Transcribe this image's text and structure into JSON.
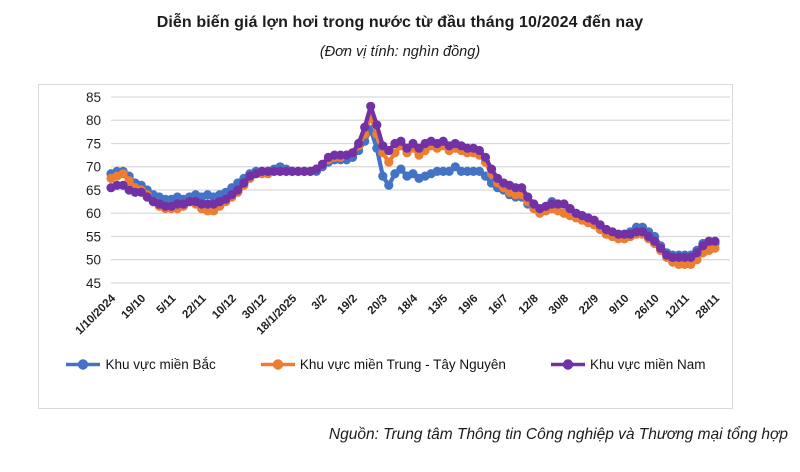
{
  "header": {
    "title": "Diễn biến giá lợn hơi trong nước từ đầu tháng 10/2024 đến nay",
    "subtitle": "(Đơn vị tính: nghìn đồng)"
  },
  "footer": {
    "source": "Nguồn: Trung tâm Thông tin Công nghiệp và Thương mại tổng hợp"
  },
  "colors": {
    "mien_bac": "#4472C4",
    "mien_trung_tay_nguyen": "#ED7D31",
    "mien_nam": "#7231A5",
    "gridline": "#D9D9D9",
    "plot_border": "#D9D9D9",
    "axis_text": "#1f1f1f"
  },
  "chart_data": {
    "type": "line",
    "title": "Diễn biến giá lợn hơi trong nước từ đầu tháng 10/2024 đến nay",
    "unit": "nghìn đồng",
    "grid": "horizontal",
    "legend_position": "bottom",
    "ylim": [
      45,
      85
    ],
    "ytick_step": 5,
    "ytick_labels": [
      45,
      50,
      55,
      60,
      65,
      70,
      75,
      80,
      85
    ],
    "x_tick_labels": [
      "1/10/2024",
      "19/10",
      "5/11",
      "22/11",
      "10/12",
      "30/12",
      "18/1/2025",
      "3/2",
      "19/2",
      "20/3",
      "18/4",
      "13/5",
      "19/6",
      "16/7",
      "12/8",
      "30/8",
      "22/9",
      "9/10",
      "26/10",
      "12/11",
      "28/11"
    ],
    "points_per_tick_interval": 5,
    "series": [
      {
        "name": "Khu vực miền Bắc",
        "color": "#4472C4",
        "values": [
          68.5,
          69,
          69,
          68,
          66.5,
          66,
          65,
          64,
          63.5,
          63,
          63,
          63.5,
          63,
          63.5,
          64,
          63.5,
          64,
          63.5,
          64,
          64.5,
          65.5,
          66.5,
          67.5,
          68.5,
          69,
          69,
          69,
          69.5,
          70,
          69.5,
          69,
          69,
          69,
          69,
          69,
          70,
          71,
          71.5,
          71.5,
          71.5,
          72,
          73.5,
          75.5,
          78,
          74,
          68,
          66,
          68.5,
          69.5,
          68,
          68.5,
          67.5,
          68,
          68.5,
          69,
          69,
          69,
          70,
          69,
          69,
          69,
          69,
          68,
          66.5,
          65.5,
          65,
          64,
          63.5,
          63.5,
          62,
          62,
          60.5,
          61.5,
          62.5,
          62,
          62,
          61,
          60,
          59.5,
          58.5,
          58,
          57,
          56.5,
          55.5,
          55.5,
          55.5,
          56,
          57,
          57,
          56,
          55,
          53,
          51.5,
          51,
          51,
          51,
          51,
          52,
          53.5,
          53.5,
          53.5
        ]
      },
      {
        "name": "Khu vực miền Trung - Tây Nguyên",
        "color": "#ED7D31",
        "values": [
          67.5,
          68,
          68.5,
          67,
          65.5,
          65,
          64,
          62.5,
          61.5,
          61,
          61,
          61,
          61.5,
          62.5,
          62,
          61,
          60.5,
          60.5,
          61.5,
          62.5,
          63.5,
          64.5,
          66,
          67.5,
          68.5,
          68.5,
          68.5,
          69,
          69,
          69,
          69,
          69,
          69,
          69,
          69.5,
          70.5,
          71.5,
          72,
          72,
          72.5,
          73,
          74.5,
          77,
          81,
          77,
          73,
          71,
          73,
          74.5,
          73,
          74,
          72.5,
          73.5,
          74.5,
          74,
          74.5,
          73.5,
          74,
          73.5,
          73,
          73,
          72.5,
          71,
          68.5,
          66.5,
          65.5,
          64.5,
          64,
          64,
          62.5,
          61,
          60,
          60.5,
          61,
          60.5,
          60,
          59.5,
          59,
          58.5,
          58,
          57.5,
          56.5,
          55.5,
          55,
          54.5,
          54.5,
          55,
          55.5,
          55.5,
          54.5,
          53.5,
          52,
          50.5,
          49.5,
          49,
          49,
          49,
          50,
          51.5,
          52,
          52.5
        ]
      },
      {
        "name": "Khu vực miền Nam",
        "color": "#7231A5",
        "values": [
          65.5,
          66,
          66,
          65,
          64.5,
          64.5,
          63.5,
          62.5,
          62,
          61.5,
          61.5,
          62,
          62,
          62.5,
          62.5,
          62,
          62,
          62,
          62.5,
          63,
          64,
          65,
          66.5,
          68,
          68.5,
          69,
          69,
          69,
          69,
          69,
          69,
          69,
          69,
          69,
          69.5,
          70.5,
          72,
          72.5,
          72.5,
          72.5,
          73,
          75,
          78.5,
          83,
          79,
          74.5,
          73.5,
          75,
          75.5,
          74,
          75,
          74,
          75,
          75.5,
          75,
          75.5,
          74.5,
          75,
          74.5,
          74,
          74,
          73.5,
          72,
          69.5,
          67.5,
          66.5,
          66,
          65.5,
          65.5,
          63.5,
          62,
          61,
          61.5,
          62,
          62,
          62,
          61,
          60,
          59.5,
          59,
          58.5,
          57.5,
          56.5,
          56,
          55.5,
          55.5,
          55.5,
          56,
          56,
          55,
          54,
          52.5,
          51,
          50.5,
          50.5,
          50.5,
          50.5,
          51.5,
          53,
          54,
          54
        ]
      }
    ]
  }
}
